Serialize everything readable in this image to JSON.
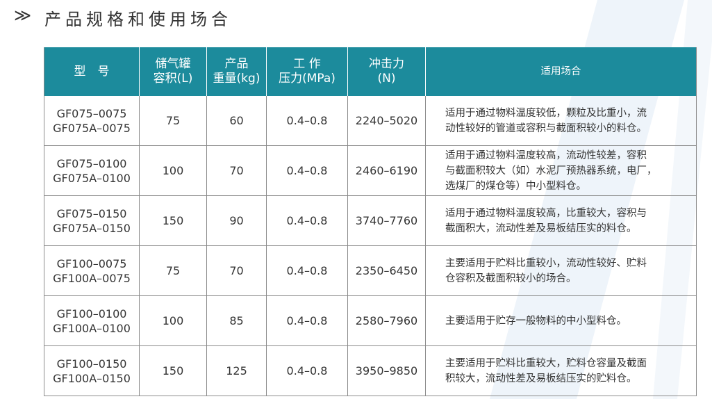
{
  "header": {
    "marker": "≫",
    "title": "产品规格和使用场合"
  },
  "table": {
    "columns": [
      [
        "型　号"
      ],
      [
        "储气罐",
        "容积(L)"
      ],
      [
        "产品",
        "重量(kg)"
      ],
      [
        "工 作",
        "压力(MPa)"
      ],
      [
        "冲击力",
        "(N)"
      ],
      [
        "适用场合"
      ]
    ],
    "rows": [
      [
        [
          "GF075–0075",
          "GF075A–0075"
        ],
        "75",
        "60",
        "0.4–0.8",
        "2240–5020",
        [
          "适用于通过物料温度较低，颗粒及比重小，流",
          "动性较好的管道或容积与截面积较小的料仓。"
        ]
      ],
      [
        [
          "GF075–0100",
          "GF075A–0100"
        ],
        "100",
        "70",
        "0.4–0.8",
        "2460–6190",
        [
          "适用于通过物料温度较高，流动性较差，容积",
          "与截面积较大（如）水泥厂预热器系统，电厂，",
          "选煤厂的煤仓等）中小型料仓。"
        ]
      ],
      [
        [
          "GF075–0150",
          "GF075A–0150"
        ],
        "150",
        "90",
        "0.4–0.8",
        "3740–7760",
        [
          "适用于通过物料温度较高，比重较大，容积与",
          "截面积大，流动性差及易板结压实的料仓。"
        ]
      ],
      [
        [
          "GF100–0075",
          "GF100A–0075"
        ],
        "75",
        "70",
        "0.4–0.8",
        "2350–6450",
        [
          "主要适用于贮料比重较小，流动性较好、贮料",
          "仓容积及截面积较小的场合。"
        ]
      ],
      [
        [
          "GF100–0100",
          "GF100A–0100"
        ],
        "100",
        "85",
        "0.4–0.8",
        "2580–7960",
        [
          "主要适用于贮存一般物料的中小型料仓。"
        ]
      ],
      [
        [
          "GF100–0150",
          "GF100A–0150"
        ],
        "150",
        "125",
        "0.4–0.8",
        "3950–9850",
        [
          "主要适用于贮料比重较大，贮料仓容量及截面",
          "积较大，流动性差及易板结压实的贮料仓。"
        ]
      ]
    ]
  }
}
